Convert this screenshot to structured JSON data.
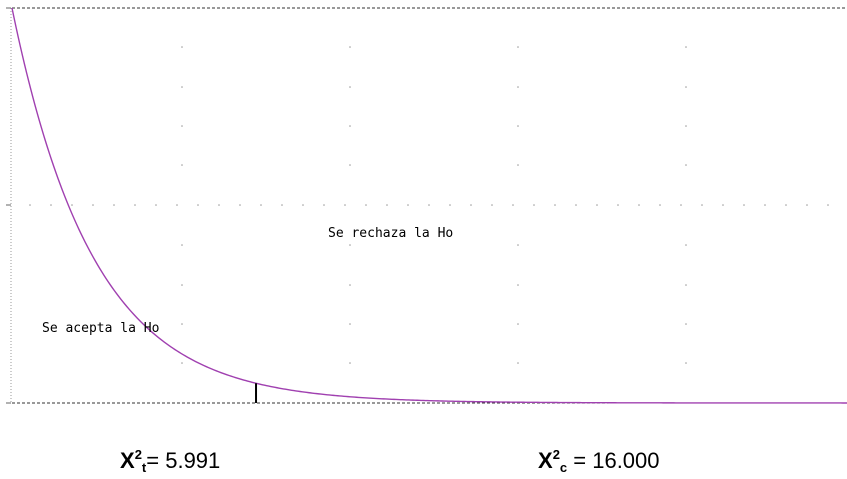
{
  "chart_data": {
    "type": "line",
    "title": "",
    "xlabel": "",
    "ylabel": "",
    "distribution": "chi-square",
    "degrees_of_freedom": 2,
    "xlim": [
      0,
      20.5
    ],
    "ylim": [
      0,
      0.5
    ],
    "grid": true,
    "critical_value": 5.991,
    "series": [
      {
        "name": "",
        "color": "#a040b0"
      }
    ],
    "annotations": {
      "reject": "Se rechaza la Ho",
      "accept": "Se acepta la Ho"
    }
  },
  "stats": {
    "tabulated": {
      "symbol": "X",
      "sup": "2",
      "sub": "t",
      "text": "= 5.991"
    },
    "calculated": {
      "symbol": "X",
      "sup": "2",
      "sub": "c",
      "text": " = 16.000"
    }
  }
}
